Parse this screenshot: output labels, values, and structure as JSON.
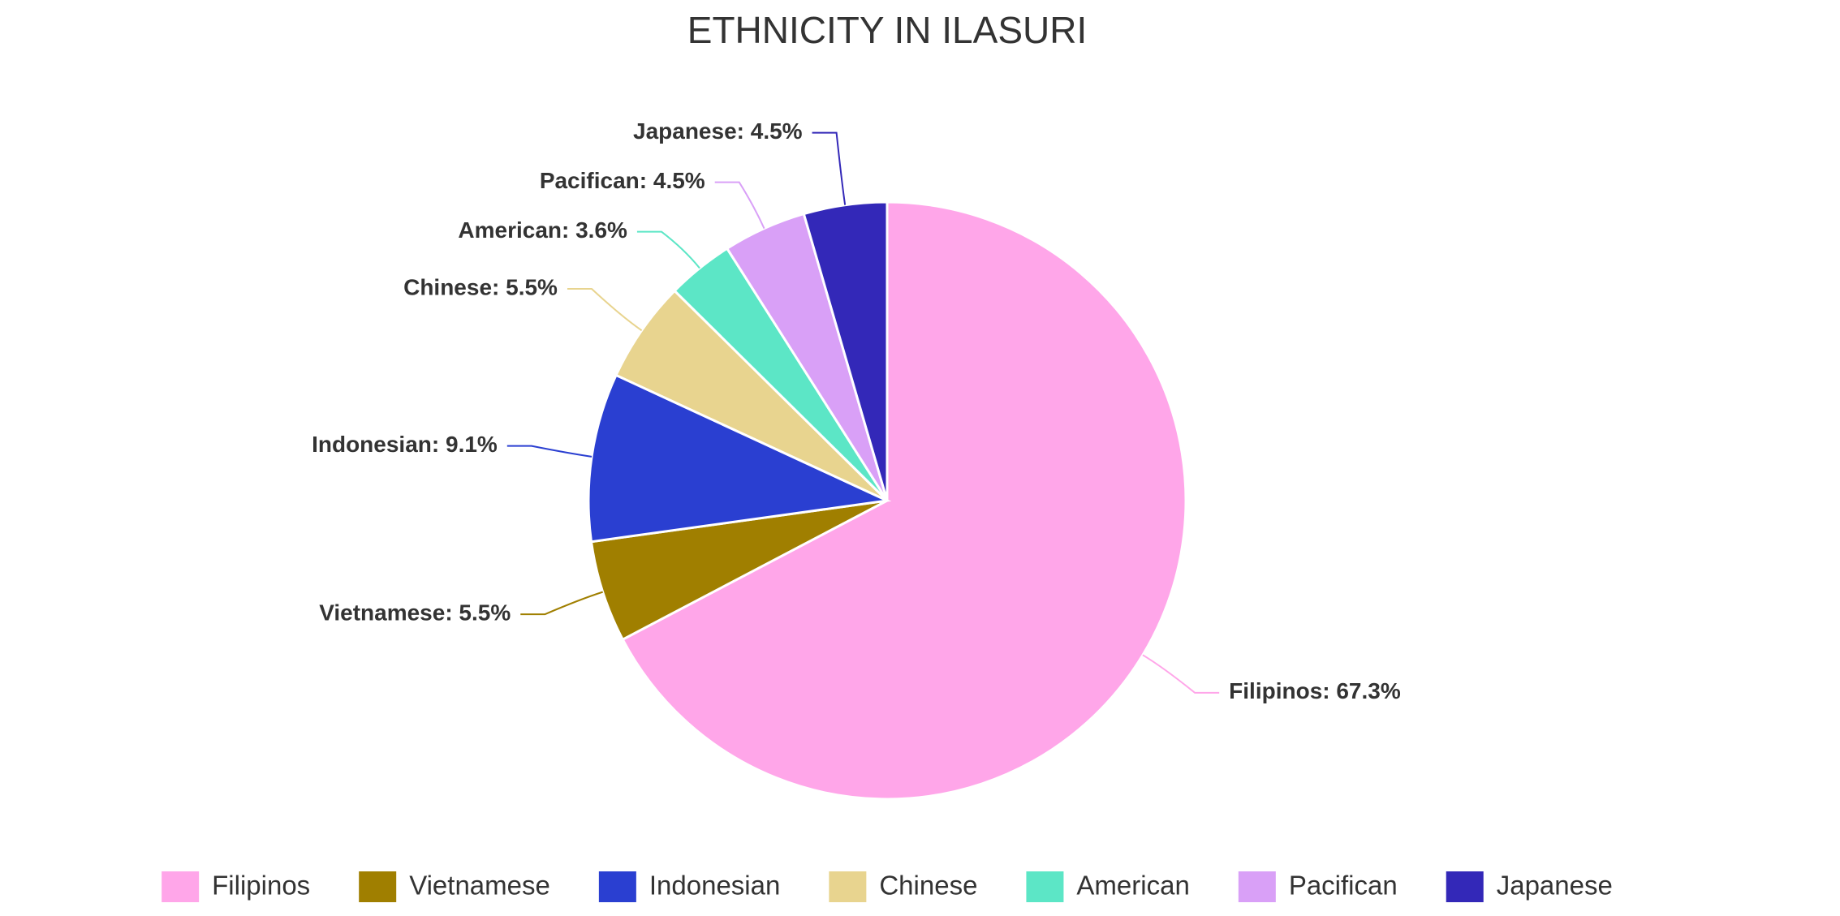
{
  "chart_data": {
    "type": "pie",
    "title": "ETHNICITY IN ILASURI",
    "categories": [
      "Filipinos",
      "Vietnamese",
      "Indonesian",
      "Chinese",
      "American",
      "Pacifican",
      "Japanese"
    ],
    "values": [
      67.3,
      5.5,
      9.1,
      5.5,
      3.6,
      4.5,
      4.5
    ],
    "value_labels": [
      "Filipinos: 67.3%",
      "Vietnamese: 5.5%",
      "Indonesian: 9.1%",
      "Chinese: 5.5%",
      "American: 3.6%",
      "Pacifican: 4.5%",
      "Japanese: 4.5%"
    ],
    "colors": [
      "#ffa6e9",
      "#a07f00",
      "#2a3fd1",
      "#e8d48f",
      "#5ce6c6",
      "#d9a0f7",
      "#3328b8"
    ],
    "legend": "bottom"
  }
}
